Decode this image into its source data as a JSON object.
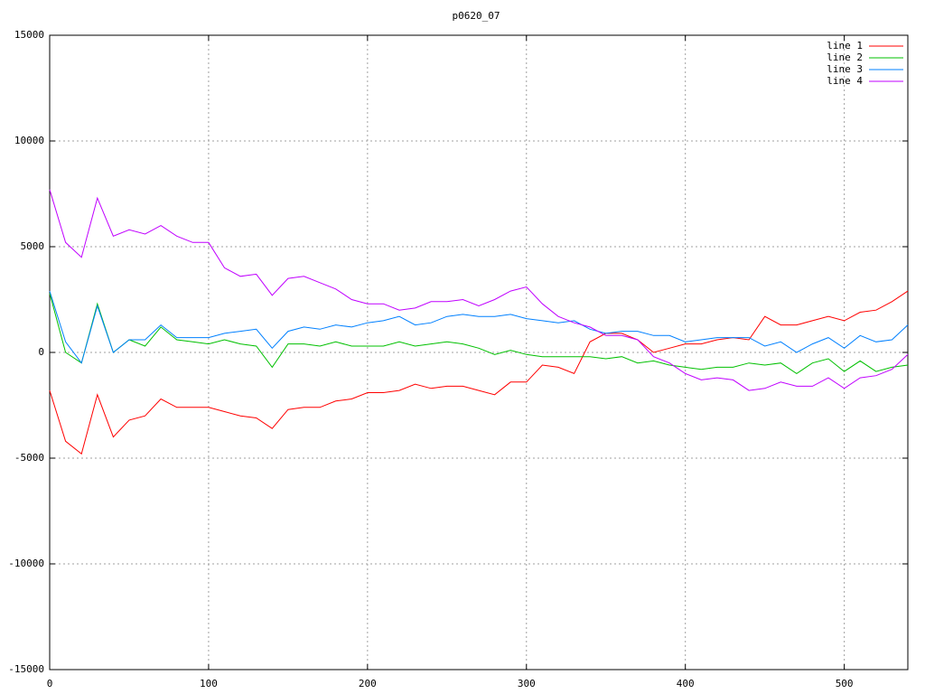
{
  "chart_data": {
    "type": "line",
    "title": "p0620_07",
    "x": [
      0,
      10,
      20,
      30,
      40,
      50,
      60,
      70,
      80,
      90,
      100,
      110,
      120,
      130,
      140,
      150,
      160,
      170,
      180,
      190,
      200,
      210,
      220,
      230,
      240,
      250,
      260,
      270,
      280,
      290,
      300,
      310,
      320,
      330,
      340,
      350,
      360,
      370,
      380,
      390,
      400,
      410,
      420,
      430,
      440,
      450,
      460,
      470,
      480,
      490,
      500,
      510,
      520,
      530,
      540
    ],
    "series": [
      {
        "name": "line 1",
        "color": "#ff0000",
        "values": [
          -1800,
          -4200,
          -4800,
          -2000,
          -4000,
          -3200,
          -3000,
          -2200,
          -2600,
          -2600,
          -2600,
          -2800,
          -3000,
          -3100,
          -3600,
          -2700,
          -2600,
          -2600,
          -2300,
          -2200,
          -1900,
          -1900,
          -1800,
          -1500,
          -1700,
          -1600,
          -1600,
          -1800,
          -2000,
          -1400,
          -1400,
          -600,
          -700,
          -1000,
          500,
          900,
          900,
          600,
          0,
          200,
          400,
          400,
          600,
          700,
          600,
          1700,
          1300,
          1300,
          1500,
          1700,
          1500,
          1900,
          2000,
          2400,
          2900
        ]
      },
      {
        "name": "line 2",
        "color": "#00c000",
        "values": [
          2800,
          0,
          -500,
          2300,
          0,
          600,
          300,
          1200,
          600,
          500,
          400,
          600,
          400,
          300,
          -700,
          400,
          400,
          300,
          500,
          300,
          300,
          300,
          500,
          300,
          400,
          500,
          400,
          200,
          -100,
          100,
          -100,
          -200,
          -200,
          -200,
          -200,
          -300,
          -200,
          -500,
          -400,
          -600,
          -700,
          -800,
          -700,
          -700,
          -500,
          -600,
          -500,
          -1000,
          -500,
          -300,
          -900,
          -400,
          -900,
          -700,
          -600
        ]
      },
      {
        "name": "line 3",
        "color": "#0080ff",
        "values": [
          2900,
          500,
          -500,
          2200,
          0,
          600,
          600,
          1300,
          700,
          700,
          700,
          900,
          1000,
          1100,
          200,
          1000,
          1200,
          1100,
          1300,
          1200,
          1400,
          1500,
          1700,
          1300,
          1400,
          1700,
          1800,
          1700,
          1700,
          1800,
          1600,
          1500,
          1400,
          1500,
          1100,
          900,
          1000,
          1000,
          800,
          800,
          500,
          600,
          700,
          700,
          700,
          300,
          500,
          0,
          400,
          700,
          200,
          800,
          500,
          600,
          1300
        ]
      },
      {
        "name": "line 4",
        "color": "#c000ff",
        "values": [
          7700,
          5200,
          4500,
          7300,
          5500,
          5800,
          5600,
          6000,
          5500,
          5200,
          5200,
          4000,
          3600,
          3700,
          2700,
          3500,
          3600,
          3300,
          3000,
          2500,
          2300,
          2300,
          2000,
          2100,
          2400,
          2400,
          2500,
          2200,
          2500,
          2900,
          3100,
          2300,
          1700,
          1400,
          1200,
          800,
          800,
          600,
          -200,
          -500,
          -1000,
          -1300,
          -1200,
          -1300,
          -1800,
          -1700,
          -1400,
          -1600,
          -1600,
          -1200,
          -1700,
          -1200,
          -1100,
          -800,
          -100
        ]
      }
    ],
    "xlim": [
      0,
      540
    ],
    "xticks": [
      0,
      100,
      200,
      300,
      400,
      500
    ],
    "ylim": [
      -15000,
      15000
    ],
    "yticks": [
      -15000,
      -10000,
      -5000,
      0,
      5000,
      10000,
      15000
    ],
    "grid": true,
    "legend": "top-right"
  }
}
